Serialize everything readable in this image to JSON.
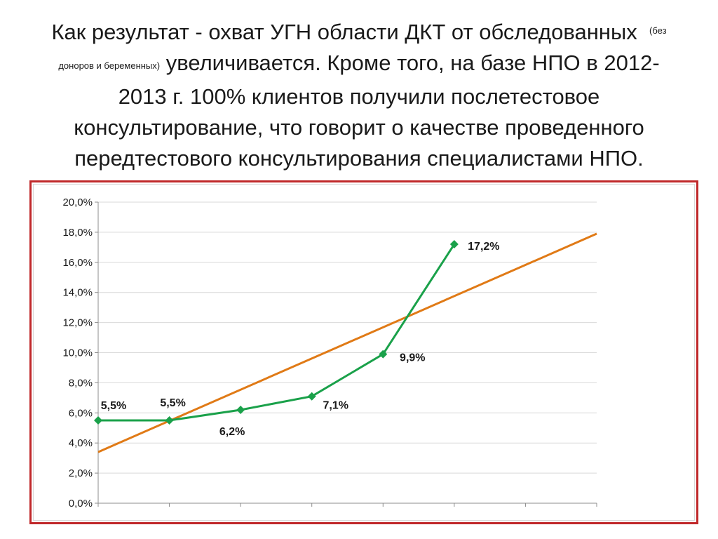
{
  "slide": {
    "title_part1": "Как результат - охват УГН области ДКТ от обследованных",
    "title_note_a": "(без",
    "title_note_b": "доноров и беременных)",
    "title_part2": "увеличивается. Кроме того, на базе НПО в 2012-",
    "title_line3": "2013 г. 100% клиентов получили послетестовое",
    "title_line4": "консультирование, что говорит о качестве проведенного",
    "title_line5": "передтестового консультирования специалистами НПО."
  },
  "colors": {
    "frame": "#c0282a",
    "series": "#1aa14a",
    "trend": "#e07a16",
    "grid": "#d9d9d9"
  },
  "chart_data": {
    "type": "line",
    "title": "",
    "xlabel": "",
    "ylabel": "",
    "ylim": [
      0,
      20
    ],
    "y_ticks": [
      "0,0%",
      "2,0%",
      "4,0%",
      "6,0%",
      "8,0%",
      "10,0%",
      "12,0%",
      "14,0%",
      "16,0%",
      "18,0%",
      "20,0%"
    ],
    "x": [
      1,
      2,
      3,
      4,
      5,
      6
    ],
    "series": [
      {
        "values": [
          5.5,
          5.5,
          6.2,
          7.1,
          9.9,
          17.2
        ],
        "labels": [
          "5,5%",
          "5,5%",
          "6,2%",
          "7,1%",
          "9,9%",
          "17,2%"
        ],
        "marker": "diamond"
      }
    ],
    "trendline": {
      "type": "linear",
      "start": 3.4,
      "end": 17.9
    },
    "grid": true,
    "legend": "none"
  }
}
